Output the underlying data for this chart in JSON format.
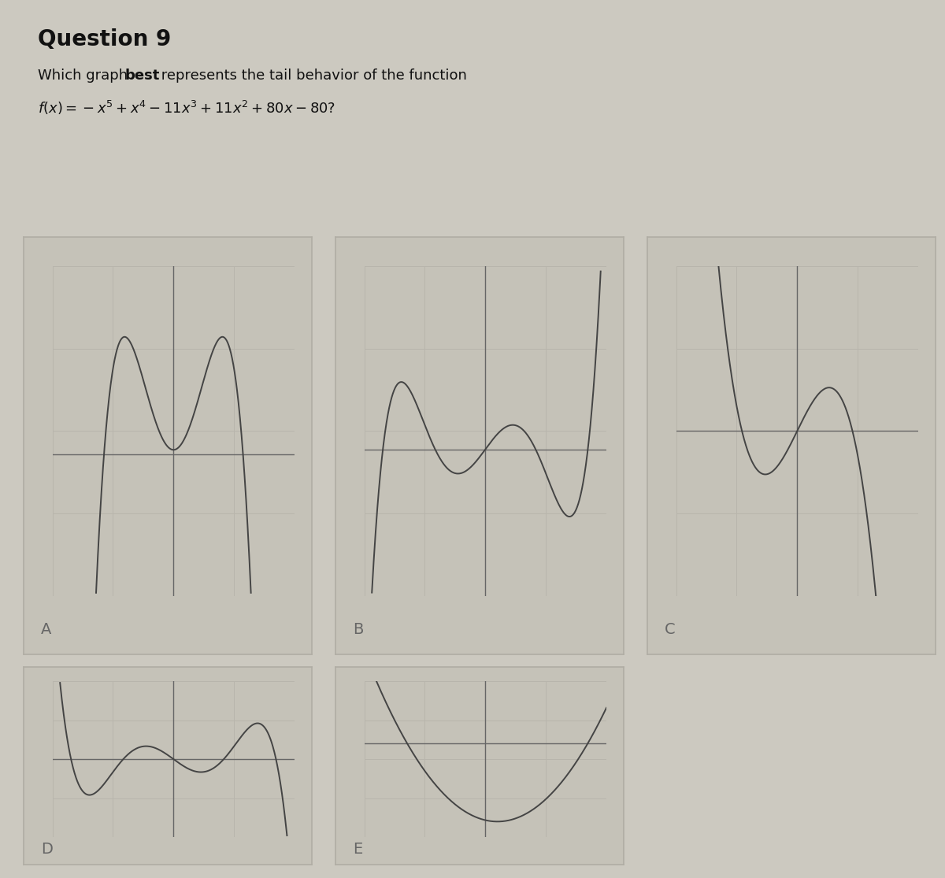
{
  "bg_color": "#ccc9c0",
  "box_bg_color": "#c5c2b8",
  "box_edge_color": "#b0ada4",
  "curve_color": "#444444",
  "axis_color": "#666666",
  "grid_color": "#b8b5ac",
  "label_color": "#666666",
  "title": "Question 9",
  "line1_normal": "Which graph ",
  "line1_bold": "best",
  "line1_rest": " represents the tail behavior of the function",
  "line2": "f(x)= −x⁵ + x⁴ − 11x³ + 11x² + 80x − 80?",
  "title_fontsize": 20,
  "body_fontsize": 13,
  "label_fontsize": 14
}
